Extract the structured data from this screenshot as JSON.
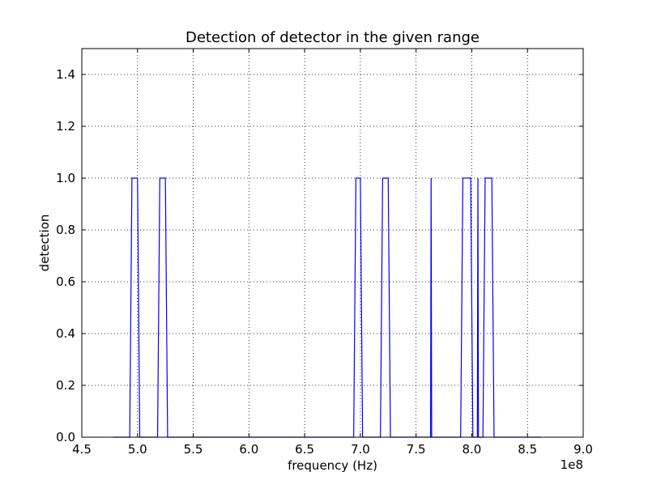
{
  "chart_data": {
    "type": "line",
    "title": "Detection of detector in the given range",
    "xlabel": "frequency (Hz)",
    "ylabel": "detection",
    "x_offset_label": "1e8",
    "xlim": [
      4.5,
      9.0
    ],
    "ylim": [
      0.0,
      1.5
    ],
    "x_ticks": [
      4.5,
      5.0,
      5.5,
      6.0,
      6.5,
      7.0,
      7.5,
      8.0,
      8.5,
      9.0
    ],
    "x_tick_labels": [
      "4.5",
      "5.0",
      "5.5",
      "6.0",
      "6.5",
      "7.0",
      "7.5",
      "8.0",
      "8.5",
      "9.0"
    ],
    "y_ticks": [
      0.0,
      0.2,
      0.4,
      0.6,
      0.8,
      1.0,
      1.2,
      1.4
    ],
    "y_tick_labels": [
      "0.0",
      "0.2",
      "0.4",
      "0.6",
      "0.8",
      "1.0",
      "1.2",
      "1.4"
    ],
    "grid": true,
    "series": [
      {
        "color": "#0000ff",
        "x": [
          4.78,
          4.93,
          4.95,
          5.0,
          5.02,
          5.18,
          5.2,
          5.25,
          5.27,
          6.94,
          6.96,
          7.0,
          7.02,
          7.18,
          7.2,
          7.25,
          7.27,
          7.63,
          7.635,
          7.64,
          7.9,
          7.92,
          7.99,
          8.01,
          8.05,
          8.055,
          8.06,
          8.1,
          8.12,
          8.18,
          8.2,
          8.62
        ],
        "y": [
          0,
          0,
          1,
          1,
          0,
          0,
          1,
          1,
          0,
          0,
          1,
          1,
          0,
          0,
          1,
          1,
          0,
          0,
          1,
          0,
          0,
          1,
          1,
          0,
          0,
          1,
          0,
          0,
          1,
          1,
          0,
          0
        ]
      }
    ]
  }
}
